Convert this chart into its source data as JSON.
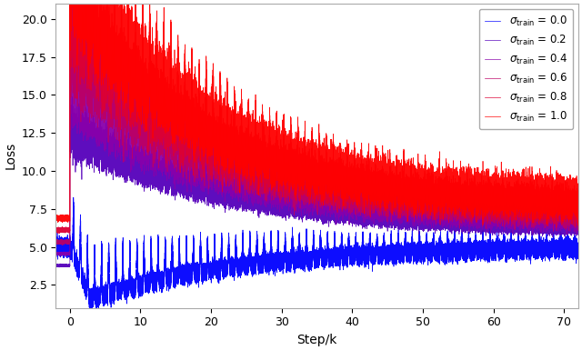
{
  "sigma_values": [
    0.0,
    0.2,
    0.4,
    0.6,
    0.8,
    1.0
  ],
  "colors": [
    "#0000ff",
    "#5500bb",
    "#8800aa",
    "#bb0066",
    "#dd0033",
    "#ff0000"
  ],
  "xlabel": "Step/k",
  "ylabel": "Loss",
  "xlim": [
    -2,
    72
  ],
  "ylim": [
    1.0,
    21.0
  ],
  "yticks": [
    2.5,
    5.0,
    7.5,
    10.0,
    12.5,
    15.0,
    17.5,
    20.0
  ],
  "xticks": [
    0,
    10,
    20,
    30,
    40,
    50,
    60,
    70
  ],
  "n_steps": 72000,
  "figsize": [
    6.4,
    3.85
  ],
  "dpi": 100
}
